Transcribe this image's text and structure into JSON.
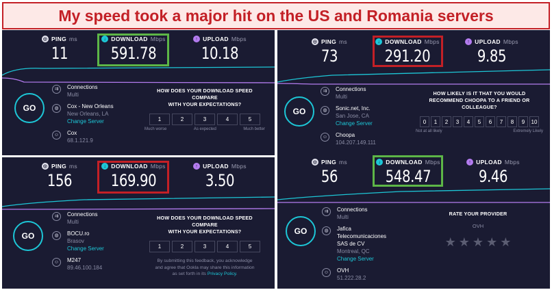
{
  "banner": {
    "title": "My speed took a major hit on the US and Romania servers"
  },
  "colors": {
    "panel_bg": "#1a1b32",
    "accent": "#1dc7d7",
    "upload": "#b47cf0",
    "highlight_good": "#5db647",
    "highlight_bad": "#c32026"
  },
  "labels": {
    "ping": "PING",
    "ping_unit": "ms",
    "download": "DOWNLOAD",
    "download_unit": "Mbps",
    "upload": "UPLOAD",
    "upload_unit": "Mbps",
    "go": "GO",
    "connections": "Connections",
    "connections_value": "Multi",
    "change_server": "Change Server"
  },
  "tests": [
    {
      "ping": "11",
      "download": "591.78",
      "upload": "10.18",
      "download_highlight": "green",
      "server_name": "Cox - New Orleans",
      "server_location": "New Orleans, LA",
      "isp": "Cox",
      "ip": "68.1.121.9",
      "survey": {
        "title_line1": "HOW DOES YOUR DOWNLOAD SPEED COMPARE",
        "title_line2": "WITH YOUR EXPECTATIONS?",
        "options": [
          "1",
          "2",
          "3",
          "4",
          "5"
        ],
        "scale_left": "Much worse",
        "scale_mid": "As expected",
        "scale_right": "Much better"
      }
    },
    {
      "ping": "73",
      "download": "291.20",
      "upload": "9.85",
      "download_highlight": "red",
      "server_name": "Sonic.net, Inc.",
      "server_location": "San Jose, CA",
      "isp": "Choopa",
      "ip": "104.207.149.111",
      "survey": {
        "title_line1": "HOW LIKELY IS IT THAT YOU WOULD",
        "title_line2": "RECOMMEND CHOOPA TO A FRIEND OR",
        "title_line3": "COLLEAGUE?",
        "options": [
          "0",
          "1",
          "2",
          "3",
          "4",
          "5",
          "6",
          "7",
          "8",
          "9",
          "10"
        ],
        "scale_left": "Not at all likely",
        "scale_right": "Extremely Likely"
      }
    },
    {
      "ping": "156",
      "download": "169.90",
      "upload": "3.50",
      "download_highlight": "red",
      "server_name": "BOCU.ro",
      "server_location": "Brasov",
      "isp": "M247",
      "ip": "89.46.100.184",
      "survey": {
        "title_line1": "HOW DOES YOUR DOWNLOAD SPEED COMPARE",
        "title_line2": "WITH YOUR EXPECTATIONS?",
        "options": [
          "1",
          "2",
          "3",
          "4",
          "5"
        ],
        "note_line1": "By submitting this feedback, you acknowledge",
        "note_line2": "and agree that Ookla may share this information",
        "note_line3": "as set forth in its",
        "note_link": "Privacy Policy",
        "note_end": "."
      }
    },
    {
      "ping": "56",
      "download": "548.47",
      "upload": "9.46",
      "download_highlight": "green",
      "server_name_line1": "Jafica",
      "server_name_line2": "Telecomunicaciones",
      "server_name_line3": "SAS de CV",
      "server_location": "Montreal, QC",
      "isp": "OVH",
      "ip": "51.222.28.2",
      "survey": {
        "title": "RATE YOUR PROVIDER",
        "provider": "OVH",
        "stars": [
          "★",
          "★",
          "★",
          "★",
          "★"
        ]
      }
    }
  ]
}
